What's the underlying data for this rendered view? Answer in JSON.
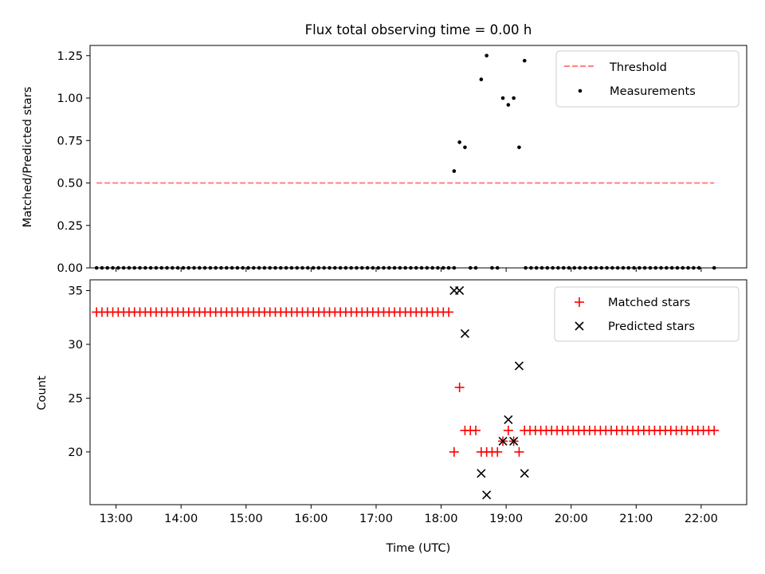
{
  "title": "Flux total observing time = 0.00 h",
  "chart_data": [
    {
      "type": "scatter",
      "panel": "top",
      "title": "Flux total observing time = 0.00 h",
      "xlabel": "",
      "ylabel": "Matched/Predicted stars",
      "xlim": [
        "12:36",
        "22:42"
      ],
      "ylim": [
        0.0,
        1.31
      ],
      "yticks": [
        0.0,
        0.25,
        0.5,
        0.75,
        1.0,
        1.25
      ],
      "ytick_labels": [
        "0.00",
        "0.25",
        "0.50",
        "0.75",
        "1.00",
        "1.25"
      ],
      "grid": false,
      "legend": "top-right",
      "threshold": {
        "name": "Threshold",
        "y": 0.5,
        "x_range": [
          "12:42",
          "22:12"
        ],
        "color": "#ff8080",
        "style": "dashed"
      },
      "measurements": {
        "name": "Measurements",
        "color": "#000000",
        "zero_runs": [
          {
            "start": "12:42",
            "end": "18:12",
            "step_min": 5
          },
          {
            "start": "19:18",
            "end": "21:58",
            "step_min": 5
          }
        ],
        "points": [
          {
            "x": "18:12",
            "y": 0.57
          },
          {
            "x": "18:17",
            "y": 0.74
          },
          {
            "x": "18:22",
            "y": 0.71
          },
          {
            "x": "18:27",
            "y": 0.0
          },
          {
            "x": "18:32",
            "y": 0.0
          },
          {
            "x": "18:37",
            "y": 1.11
          },
          {
            "x": "18:42",
            "y": 1.25
          },
          {
            "x": "18:47",
            "y": 0.0
          },
          {
            "x": "18:52",
            "y": 0.0
          },
          {
            "x": "18:57",
            "y": 1.0
          },
          {
            "x": "19:02",
            "y": 0.96
          },
          {
            "x": "19:07",
            "y": 1.0
          },
          {
            "x": "19:12",
            "y": 0.71
          },
          {
            "x": "19:17",
            "y": 1.22
          },
          {
            "x": "22:12",
            "y": 0.0
          }
        ]
      }
    },
    {
      "type": "scatter",
      "panel": "bottom",
      "xlabel": "Time (UTC)",
      "ylabel": "Count",
      "xlim": [
        "12:36",
        "22:42"
      ],
      "ylim": [
        15.1,
        36.0
      ],
      "yticks": [
        20,
        25,
        30,
        35
      ],
      "ytick_labels": [
        "20",
        "25",
        "30",
        "35"
      ],
      "xticks": [
        "13:00",
        "14:00",
        "15:00",
        "16:00",
        "17:00",
        "18:00",
        "19:00",
        "20:00",
        "21:00",
        "22:00"
      ],
      "grid": false,
      "legend": "top-right",
      "series": [
        {
          "name": "Matched stars",
          "marker": "+",
          "color": "#ff0000",
          "runs": [
            {
              "start": "12:42",
              "end": "18:07",
              "step_min": 5,
              "y": 33
            },
            {
              "start": "19:22",
              "end": "22:12",
              "step_min": 5,
              "y": 22
            }
          ],
          "points": [
            {
              "x": "18:12",
              "y": 20
            },
            {
              "x": "18:17",
              "y": 26
            },
            {
              "x": "18:22",
              "y": 22
            },
            {
              "x": "18:27",
              "y": 22
            },
            {
              "x": "18:32",
              "y": 22
            },
            {
              "x": "18:37",
              "y": 20
            },
            {
              "x": "18:42",
              "y": 20
            },
            {
              "x": "18:47",
              "y": 20
            },
            {
              "x": "18:52",
              "y": 20
            },
            {
              "x": "18:57",
              "y": 21
            },
            {
              "x": "19:02",
              "y": 22
            },
            {
              "x": "19:07",
              "y": 21
            },
            {
              "x": "19:12",
              "y": 20
            },
            {
              "x": "19:17",
              "y": 22
            }
          ]
        },
        {
          "name": "Predicted stars",
          "marker": "x",
          "color": "#000000",
          "points": [
            {
              "x": "18:12",
              "y": 35
            },
            {
              "x": "18:17",
              "y": 35
            },
            {
              "x": "18:22",
              "y": 31
            },
            {
              "x": "18:37",
              "y": 18
            },
            {
              "x": "18:42",
              "y": 16
            },
            {
              "x": "18:57",
              "y": 21
            },
            {
              "x": "19:02",
              "y": 23
            },
            {
              "x": "19:07",
              "y": 21
            },
            {
              "x": "19:12",
              "y": 28
            },
            {
              "x": "19:17",
              "y": 18
            }
          ]
        }
      ]
    }
  ]
}
